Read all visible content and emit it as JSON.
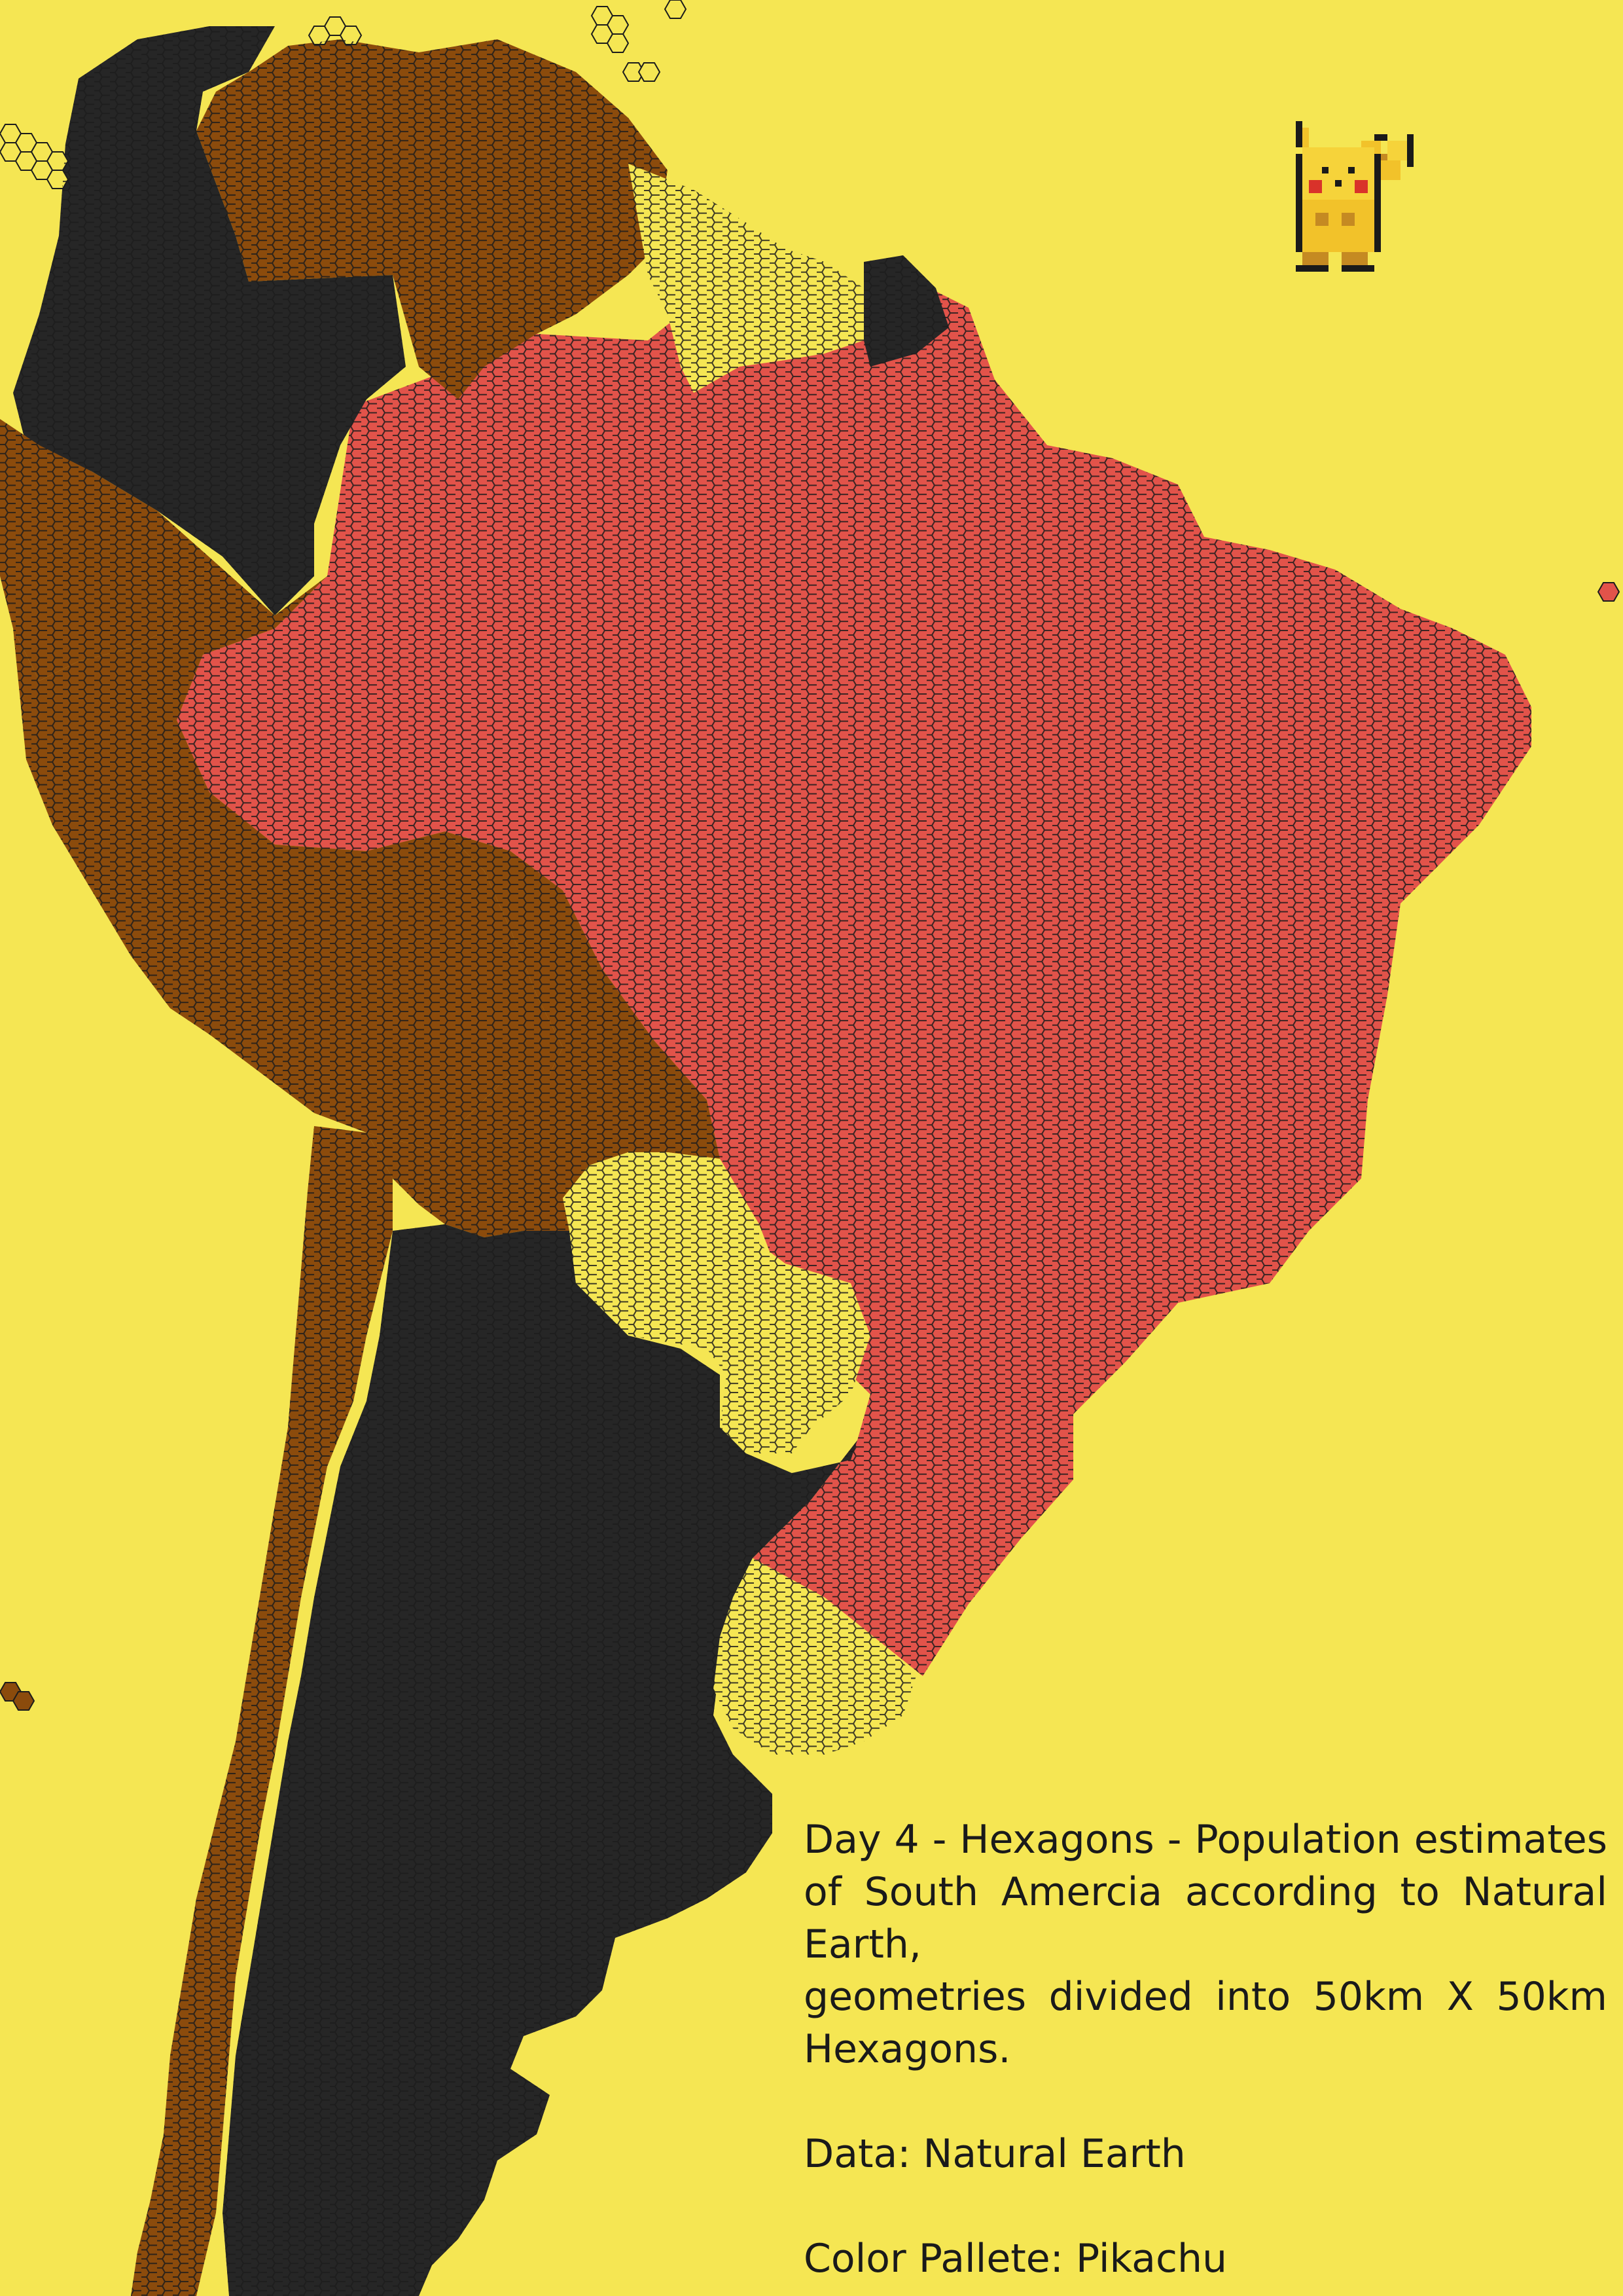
{
  "caption": {
    "title_line": "Day 4 - Hexagons - Population estimates of South Amercia according to Natural Earth,",
    "subtitle_line": "geometries divided into 50km X 50km Hexagons.",
    "data_source": "Data: Natural Earth",
    "palette_credit": "Color Pallete: Pikachu"
  },
  "palette": {
    "background": "#f5e653",
    "black": "#262626",
    "brown": "#8b4b0c",
    "red": "#e2534a",
    "yellow": "#f5e653",
    "hex_outline": "#1c1c1c"
  },
  "regions": [
    {
      "id": "brazil",
      "class": "red"
    },
    {
      "id": "colombia",
      "class": "black"
    },
    {
      "id": "argentina",
      "class": "black"
    },
    {
      "id": "suriname",
      "class": "black"
    },
    {
      "id": "venezuela",
      "class": "brown"
    },
    {
      "id": "peru",
      "class": "brown"
    },
    {
      "id": "ecuador",
      "class": "brown"
    },
    {
      "id": "bolivia",
      "class": "brown"
    },
    {
      "id": "chile",
      "class": "brown"
    },
    {
      "id": "guyana",
      "class": "yellow"
    },
    {
      "id": "paraguay",
      "class": "yellow"
    },
    {
      "id": "uruguay",
      "class": "yellow"
    },
    {
      "id": "caribbean-islands",
      "class": "yellow"
    },
    {
      "id": "galapagos",
      "class": "yellow"
    }
  ],
  "icons": [
    "pikachu-sprite-icon"
  ]
}
